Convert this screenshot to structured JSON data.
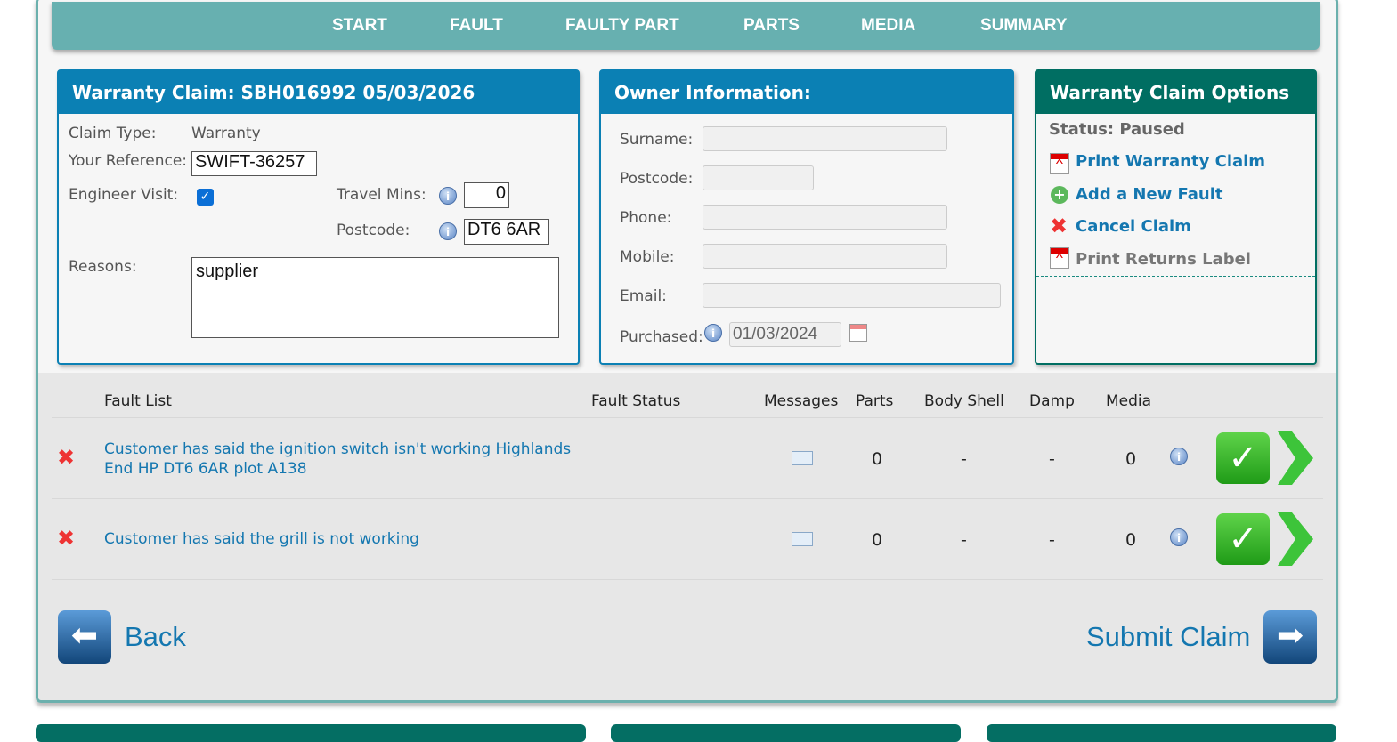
{
  "nav": {
    "tabs": [
      "START",
      "FAULT",
      "FAULTY PART",
      "PARTS",
      "MEDIA",
      "SUMMARY"
    ],
    "active": "SUMMARY"
  },
  "claim": {
    "title": "Warranty Claim: SBH016992 05/03/2026",
    "claim_type_label": "Claim Type:",
    "claim_type": "Warranty",
    "reference_label": "Your Reference:",
    "reference": "SWIFT-36257",
    "engineer_visit_label": "Engineer Visit:",
    "engineer_visit": true,
    "travel_mins_label": "Travel Mins:",
    "travel_mins": "0",
    "postcode_label": "Postcode:",
    "postcode": "DT6 6AR",
    "reasons_label": "Reasons:",
    "reasons": "supplier"
  },
  "owner": {
    "title": "Owner Information:",
    "surname_label": "Surname:",
    "postcode_label": "Postcode:",
    "phone_label": "Phone:",
    "mobile_label": "Mobile:",
    "email_label": "Email:",
    "purchased_label": "Purchased:",
    "purchased": "01/03/2024"
  },
  "options": {
    "title": "Warranty Claim Options",
    "status": "Status: Paused",
    "items": [
      "Print Warranty Claim",
      "Add a New Fault",
      "Cancel Claim",
      "Print Returns Label"
    ]
  },
  "faults": {
    "headers": [
      "Fault List",
      "Fault Status",
      "Messages",
      "Parts",
      "Body Shell",
      "Damp",
      "Media"
    ],
    "rows": [
      {
        "description": "Customer has said the ignition switch isn't working Highlands End HP DT6 6AR plot A138",
        "status": "",
        "parts": "0",
        "body_shell": "-",
        "damp": "-",
        "media": "0"
      },
      {
        "description": "Customer has said the grill is not working",
        "status": "",
        "parts": "0",
        "body_shell": "-",
        "damp": "-",
        "media": "0"
      }
    ]
  },
  "footer": {
    "back": "Back",
    "submit": "Submit Claim"
  },
  "colors": {
    "nav": "#67b0b0",
    "active_tab": "#046e63",
    "panel_header": "#0b80b4",
    "link": "#1477b0"
  }
}
